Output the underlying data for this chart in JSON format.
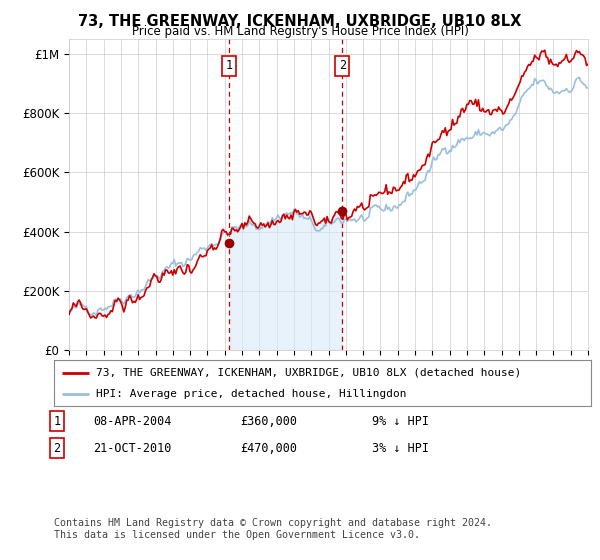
{
  "title": "73, THE GREENWAY, ICKENHAM, UXBRIDGE, UB10 8LX",
  "subtitle": "Price paid vs. HM Land Registry's House Price Index (HPI)",
  "ylabel_ticks": [
    "£0",
    "£200K",
    "£400K",
    "£600K",
    "£800K",
    "£1M"
  ],
  "ytick_values": [
    0,
    200000,
    400000,
    600000,
    800000,
    1000000
  ],
  "ylim": [
    0,
    1050000
  ],
  "xlim_start": 1995.0,
  "xlim_end": 2025.0,
  "sale1_date": 2004.27,
  "sale1_price": 360000,
  "sale1_label": "1",
  "sale2_date": 2010.8,
  "sale2_price": 470000,
  "sale2_label": "2",
  "line_color_hpi": "#99bfe0",
  "line_color_price": "#cc0000",
  "shade_color": "#d8eaf8",
  "vline_color": "#cc0000",
  "marker_color": "#990000",
  "legend_label_price": "73, THE GREENWAY, ICKENHAM, UXBRIDGE, UB10 8LX (detached house)",
  "legend_label_hpi": "HPI: Average price, detached house, Hillingdon",
  "note1_num": "1",
  "note1_date": "08-APR-2004",
  "note1_price": "£360,000",
  "note1_pct": "9% ↓ HPI",
  "note2_num": "2",
  "note2_date": "21-OCT-2010",
  "note2_price": "£470,000",
  "note2_pct": "3% ↓ HPI",
  "footnote": "Contains HM Land Registry data © Crown copyright and database right 2024.\nThis data is licensed under the Open Government Licence v3.0.",
  "background_color": "#ffffff",
  "grid_color": "#cccccc"
}
